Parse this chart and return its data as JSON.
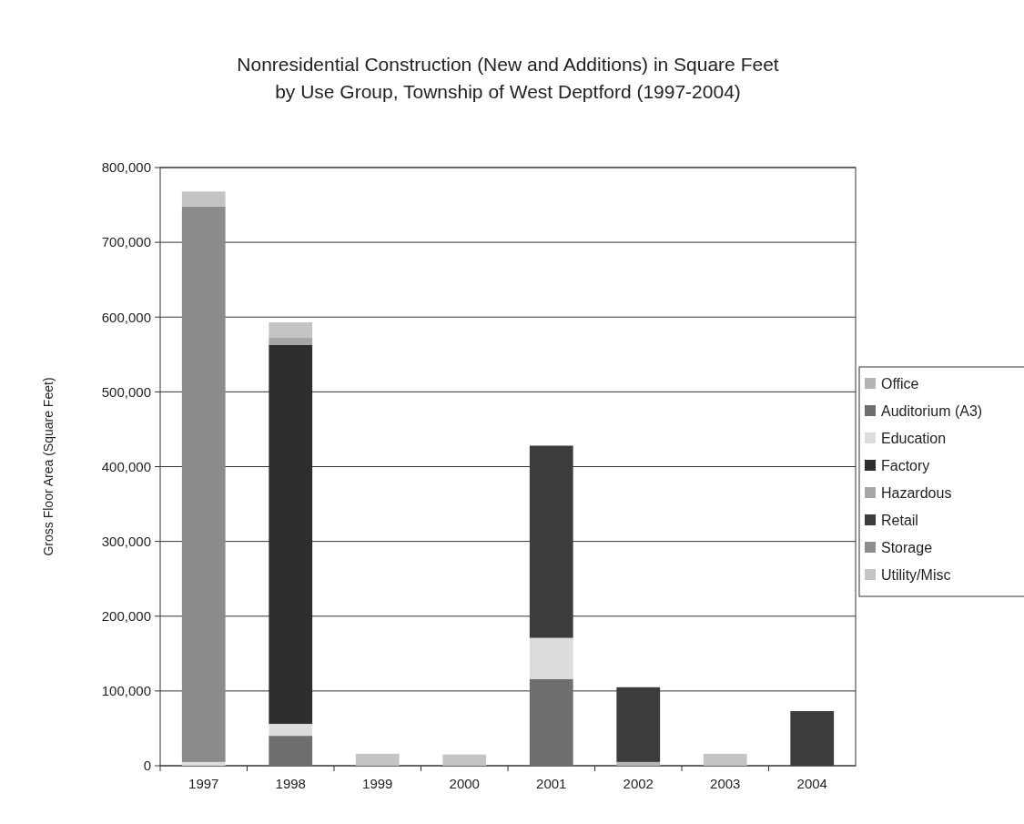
{
  "chart_data": {
    "type": "bar",
    "stacked": true,
    "title": "Nonresidential Construction (New and Additions) in Square Feet\nby Use Group, Township of West Deptford (1997-2004)",
    "ylabel": "Gross Floor Area (Square Feet)",
    "categories": [
      "1997",
      "1998",
      "1999",
      "2000",
      "2001",
      "2002",
      "2003",
      "2004"
    ],
    "series": [
      {
        "name": "Office",
        "color": "#b4b4b4",
        "values": [
          0,
          0,
          0,
          0,
          0,
          5000,
          0,
          0
        ]
      },
      {
        "name": "Auditorium (A3)",
        "color": "#6e6e6e",
        "values": [
          0,
          40000,
          0,
          0,
          116000,
          0,
          0,
          0
        ]
      },
      {
        "name": "Education",
        "color": "#dcdcdc",
        "values": [
          5000,
          16000,
          0,
          0,
          55000,
          0,
          0,
          0
        ]
      },
      {
        "name": "Factory",
        "color": "#2e2e2e",
        "values": [
          0,
          507000,
          0,
          0,
          0,
          0,
          0,
          0
        ]
      },
      {
        "name": "Hazardous",
        "color": "#a6a6a6",
        "values": [
          0,
          10000,
          0,
          0,
          0,
          0,
          0,
          0
        ]
      },
      {
        "name": "Retail",
        "color": "#3c3c3c",
        "values": [
          0,
          0,
          0,
          0,
          257000,
          100000,
          0,
          73000
        ]
      },
      {
        "name": "Storage",
        "color": "#8c8c8c",
        "values": [
          743000,
          0,
          0,
          0,
          0,
          0,
          0,
          0
        ]
      },
      {
        "name": "Utility/Misc",
        "color": "#c4c4c4",
        "values": [
          20000,
          20000,
          16000,
          15000,
          0,
          0,
          16000,
          0
        ]
      }
    ],
    "ylim": [
      0,
      800000
    ],
    "yticks": [
      {
        "value": 0,
        "label": "0"
      },
      {
        "value": 100000,
        "label": "100,000"
      },
      {
        "value": 200000,
        "label": "200,000"
      },
      {
        "value": 300000,
        "label": "300,000"
      },
      {
        "value": 400000,
        "label": "400,000"
      },
      {
        "value": 500000,
        "label": "500,000"
      },
      {
        "value": 600000,
        "label": "600,000"
      },
      {
        "value": 700000,
        "label": "700,000"
      },
      {
        "value": 800000,
        "label": "800,000"
      }
    ],
    "grid": "y",
    "legend": "right"
  }
}
